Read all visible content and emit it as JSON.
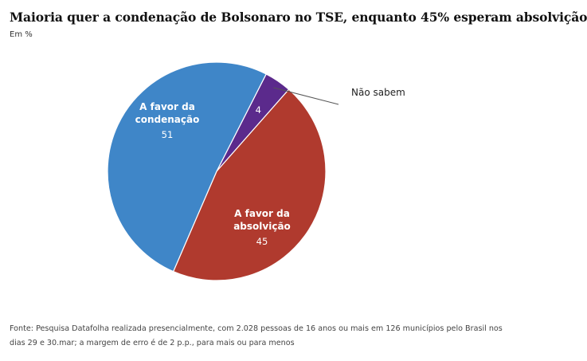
{
  "title": "Maioria quer a condenação de Bolsonaro no TSE, enquanto 45% esperam absolvição",
  "subtitle": "Em %",
  "source": "Fonte: Pesquisa Datafolha realizada presencialmente, com 2.028 pessoas de 16 anos ou mais em 126 municípios pelo Brasil nos dias 29 e 30.mar; a margem de erro é de 2 p.p., para mais ou para menos",
  "chart_data": {
    "type": "pie",
    "title": "Maioria quer a condenação de Bolsonaro no TSE, enquanto 45% esperam absolvição",
    "subtitle": "Em %",
    "slices": [
      {
        "name": "Não sabem",
        "label_lines": [
          "Não sabem"
        ],
        "value": 4,
        "value_label": "4",
        "color": "#5b2a8c"
      },
      {
        "name": "A favor da absolvição",
        "label_lines": [
          "A favor da",
          "absolvição"
        ],
        "value": 45,
        "value_label": "45",
        "color": "#b03a2e"
      },
      {
        "name": "A favor da condenação",
        "label_lines": [
          "A favor da",
          "condenação"
        ],
        "value": 51,
        "value_label": "51",
        "color": "#3f86c8"
      }
    ]
  }
}
